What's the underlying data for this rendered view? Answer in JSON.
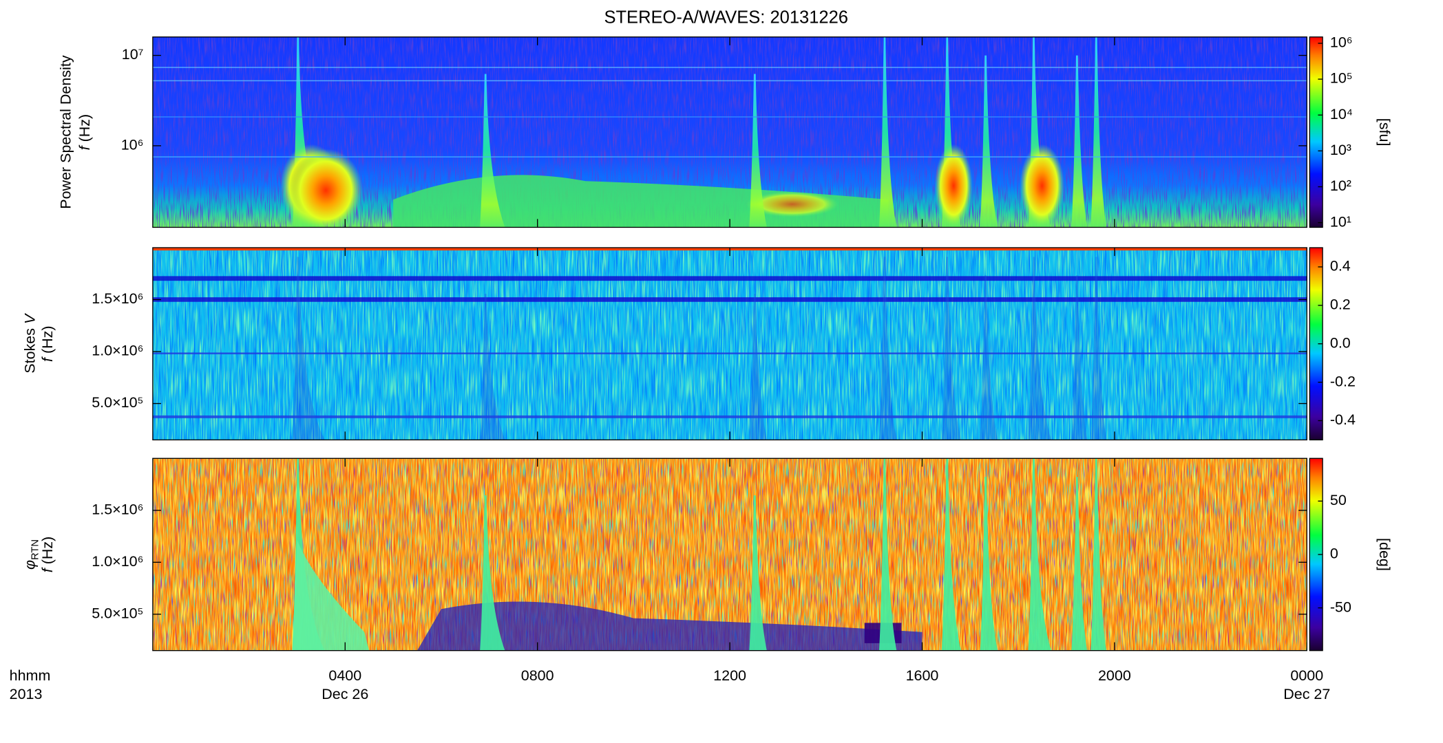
{
  "title": "STEREO-A/WAVES: 20131226",
  "x_axis": {
    "xlim": [
      0,
      24
    ],
    "xticks": [
      {
        "value": 4,
        "label": "0400"
      },
      {
        "value": 8,
        "label": "0800"
      },
      {
        "value": 12,
        "label": "1200"
      },
      {
        "value": 16,
        "label": "1600"
      },
      {
        "value": 20,
        "label": "2000"
      },
      {
        "value": 24,
        "label": "0000"
      }
    ],
    "tick_dates": [
      "Dec 26",
      null,
      null,
      null,
      null,
      "Dec 27"
    ],
    "label": "hhmm",
    "year": "2013"
  },
  "chart_data": [
    {
      "type": "heatmap",
      "ylabel": "Power Spectral Density",
      "ylabel_var": "f",
      "ylabel_unit": "(Hz)",
      "ylog": true,
      "ylim": [
        125000,
        16000000
      ],
      "yticks": [
        {
          "value": 1000000,
          "label": "10⁶"
        },
        {
          "value": 10000000,
          "label": "10⁷"
        }
      ],
      "colorbar": {
        "log": true,
        "clim": [
          7.4,
          1500000
        ],
        "ticks": [
          {
            "value": 10,
            "label": "10¹"
          },
          {
            "value": 100,
            "label": "10²"
          },
          {
            "value": 1000,
            "label": "10³"
          },
          {
            "value": 10000,
            "label": "10⁴"
          },
          {
            "value": 100000,
            "label": "10⁵"
          },
          {
            "value": 1000000,
            "label": "10⁶"
          }
        ],
        "label": "[sfu]"
      }
    },
    {
      "type": "heatmap",
      "ylabel": "Stokes",
      "ylabel_symbol": "V",
      "ylabel_var": "f",
      "ylabel_unit": "(Hz)",
      "ylog": false,
      "ylim": [
        150000,
        2000000
      ],
      "yticks": [
        {
          "value": 500000,
          "label": "5.0×10⁵"
        },
        {
          "value": 1000000,
          "label": "1.0×10⁶"
        },
        {
          "value": 1500000,
          "label": "1.5×10⁶"
        }
      ],
      "colorbar": {
        "log": false,
        "clim": [
          -0.5,
          0.5
        ],
        "ticks": [
          -0.4,
          -0.2,
          {
            "value": 0,
            "label": "0.0"
          },
          0.2,
          0.4
        ]
      }
    },
    {
      "type": "heatmap",
      "ylabel_symbol": "φ",
      "ylabel_subscript": "RTN",
      "ylabel_var": "f",
      "ylabel_unit": "(Hz)",
      "ylog": false,
      "ylim": [
        150000,
        2000000
      ],
      "yticks": [
        {
          "value": 500000,
          "label": "5.0×10⁵"
        },
        {
          "value": 1000000,
          "label": "1.0×10⁶"
        },
        {
          "value": 1500000,
          "label": "1.5×10⁶"
        }
      ],
      "colorbar": {
        "log": false,
        "clim": [
          -90,
          90
        ],
        "ticks": [
          -50,
          0,
          50
        ],
        "label": "[deg]"
      }
    }
  ]
}
